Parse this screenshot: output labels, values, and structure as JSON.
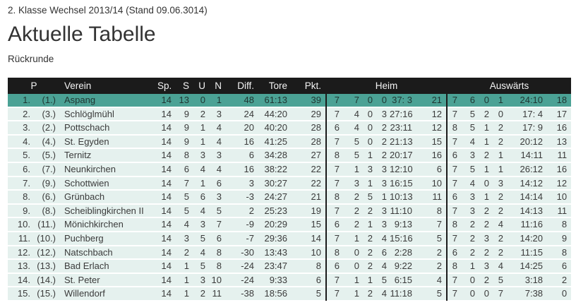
{
  "page": {
    "breadcrumb": "2. Klasse Wechsel 2013/14 (Stand 09.06.3014)",
    "title": "Aktuelle Tabelle",
    "subtitle": "Rückrunde"
  },
  "table": {
    "colors": {
      "header_bg": "#1b1b1b",
      "header_text": "#f4f4f4",
      "highlight_row_bg": "#4ba295",
      "highlight_row_text": "#1f3531",
      "row_bg": "#e5f1ee",
      "row_text": "#3b3b3b"
    },
    "headers": {
      "p": "P",
      "verein": "Verein",
      "sp": "Sp.",
      "s": "S",
      "u": "U",
      "n": "N",
      "diff": "Diff.",
      "tore": "Tore",
      "pkt": "Pkt.",
      "heim": "Heim",
      "auswaerts": "Auswärts"
    },
    "rows": [
      {
        "rank": "1.",
        "prev": "(1.)",
        "verein": "Aspang",
        "sp": "14",
        "s": "13",
        "u": "0",
        "n": "1",
        "diff": "48",
        "tore": "61:13",
        "pkt": "39",
        "heim": [
          "7",
          "7",
          "0",
          "0",
          "37: 3",
          "21"
        ],
        "auswaerts": [
          "7",
          "6",
          "0",
          "1",
          "24:10",
          "18"
        ],
        "highlight": true
      },
      {
        "rank": "2.",
        "prev": "(3.)",
        "verein": "Schlöglmühl",
        "sp": "14",
        "s": "9",
        "u": "2",
        "n": "3",
        "diff": "24",
        "tore": "44:20",
        "pkt": "29",
        "heim": [
          "7",
          "4",
          "0",
          "3",
          "27:16",
          "12"
        ],
        "auswaerts": [
          "7",
          "5",
          "2",
          "0",
          "17: 4",
          "17"
        ],
        "highlight": false
      },
      {
        "rank": "3.",
        "prev": "(2.)",
        "verein": "Pottschach",
        "sp": "14",
        "s": "9",
        "u": "1",
        "n": "4",
        "diff": "20",
        "tore": "40:20",
        "pkt": "28",
        "heim": [
          "6",
          "4",
          "0",
          "2",
          "23:11",
          "12"
        ],
        "auswaerts": [
          "8",
          "5",
          "1",
          "2",
          "17: 9",
          "16"
        ],
        "highlight": false
      },
      {
        "rank": "4.",
        "prev": "(4.)",
        "verein": "St. Egyden",
        "sp": "14",
        "s": "9",
        "u": "1",
        "n": "4",
        "diff": "16",
        "tore": "41:25",
        "pkt": "28",
        "heim": [
          "7",
          "5",
          "0",
          "2",
          "21:13",
          "15"
        ],
        "auswaerts": [
          "7",
          "4",
          "1",
          "2",
          "20:12",
          "13"
        ],
        "highlight": false
      },
      {
        "rank": "5.",
        "prev": "(5.)",
        "verein": "Ternitz",
        "sp": "14",
        "s": "8",
        "u": "3",
        "n": "3",
        "diff": "6",
        "tore": "34:28",
        "pkt": "27",
        "heim": [
          "8",
          "5",
          "1",
          "2",
          "20:17",
          "16"
        ],
        "auswaerts": [
          "6",
          "3",
          "2",
          "1",
          "14:11",
          "11"
        ],
        "highlight": false
      },
      {
        "rank": "6.",
        "prev": "(7.)",
        "verein": "Neunkirchen",
        "sp": "14",
        "s": "6",
        "u": "4",
        "n": "4",
        "diff": "16",
        "tore": "38:22",
        "pkt": "22",
        "heim": [
          "7",
          "1",
          "3",
          "3",
          "12:10",
          "6"
        ],
        "auswaerts": [
          "7",
          "5",
          "1",
          "1",
          "26:12",
          "16"
        ],
        "highlight": false
      },
      {
        "rank": "7.",
        "prev": "(9.)",
        "verein": "Schottwien",
        "sp": "14",
        "s": "7",
        "u": "1",
        "n": "6",
        "diff": "3",
        "tore": "30:27",
        "pkt": "22",
        "heim": [
          "7",
          "3",
          "1",
          "3",
          "16:15",
          "10"
        ],
        "auswaerts": [
          "7",
          "4",
          "0",
          "3",
          "14:12",
          "12"
        ],
        "highlight": false
      },
      {
        "rank": "8.",
        "prev": "(6.)",
        "verein": "Grünbach",
        "sp": "14",
        "s": "5",
        "u": "6",
        "n": "3",
        "diff": "-3",
        "tore": "24:27",
        "pkt": "21",
        "heim": [
          "8",
          "2",
          "5",
          "1",
          "10:13",
          "11"
        ],
        "auswaerts": [
          "6",
          "3",
          "1",
          "2",
          "14:14",
          "10"
        ],
        "highlight": false
      },
      {
        "rank": "9.",
        "prev": "(8.)",
        "verein": "Scheiblingkirchen II",
        "sp": "14",
        "s": "5",
        "u": "4",
        "n": "5",
        "diff": "2",
        "tore": "25:23",
        "pkt": "19",
        "heim": [
          "7",
          "2",
          "2",
          "3",
          "11:10",
          "8"
        ],
        "auswaerts": [
          "7",
          "3",
          "2",
          "2",
          "14:13",
          "11"
        ],
        "highlight": false
      },
      {
        "rank": "10.",
        "prev": "(11.)",
        "verein": "Mönichkirchen",
        "sp": "14",
        "s": "4",
        "u": "3",
        "n": "7",
        "diff": "-9",
        "tore": "20:29",
        "pkt": "15",
        "heim": [
          "6",
          "2",
          "1",
          "3",
          " 9:13",
          "7"
        ],
        "auswaerts": [
          "8",
          "2",
          "2",
          "4",
          "11:16",
          "8"
        ],
        "highlight": false
      },
      {
        "rank": "11.",
        "prev": "(10.)",
        "verein": "Puchberg",
        "sp": "14",
        "s": "3",
        "u": "5",
        "n": "6",
        "diff": "-7",
        "tore": "29:36",
        "pkt": "14",
        "heim": [
          "7",
          "1",
          "2",
          "4",
          "15:16",
          "5"
        ],
        "auswaerts": [
          "7",
          "2",
          "3",
          "2",
          "14:20",
          "9"
        ],
        "highlight": false
      },
      {
        "rank": "12.",
        "prev": "(12.)",
        "verein": "Natschbach",
        "sp": "14",
        "s": "2",
        "u": "4",
        "n": "8",
        "diff": "-30",
        "tore": "13:43",
        "pkt": "10",
        "heim": [
          "8",
          "0",
          "2",
          "6",
          " 2:28",
          "2"
        ],
        "auswaerts": [
          "6",
          "2",
          "2",
          "2",
          "11:15",
          "8"
        ],
        "highlight": false
      },
      {
        "rank": "13.",
        "prev": "(13.)",
        "verein": "Bad Erlach",
        "sp": "14",
        "s": "1",
        "u": "5",
        "n": "8",
        "diff": "-24",
        "tore": "23:47",
        "pkt": "8",
        "heim": [
          "6",
          "0",
          "2",
          "4",
          " 9:22",
          "2"
        ],
        "auswaerts": [
          "8",
          "1",
          "3",
          "4",
          "14:25",
          "6"
        ],
        "highlight": false
      },
      {
        "rank": "14.",
        "prev": "(14.)",
        "verein": "St. Peter",
        "sp": "14",
        "s": "1",
        "u": "3",
        "n": "10",
        "diff": "-24",
        "tore": " 9:33",
        "pkt": "6",
        "heim": [
          "7",
          "1",
          "1",
          "5",
          " 6:15",
          "4"
        ],
        "auswaerts": [
          "7",
          "0",
          "2",
          "5",
          " 3:18",
          "2"
        ],
        "highlight": false
      },
      {
        "rank": "15.",
        "prev": "(15.)",
        "verein": "Willendorf",
        "sp": "14",
        "s": "1",
        "u": "2",
        "n": "11",
        "diff": "-38",
        "tore": "18:56",
        "pkt": "5",
        "heim": [
          "7",
          "1",
          "2",
          "4",
          "11:18",
          "5"
        ],
        "auswaerts": [
          "7",
          "0",
          "0",
          "7",
          " 7:38",
          "0"
        ],
        "highlight": false
      }
    ]
  }
}
